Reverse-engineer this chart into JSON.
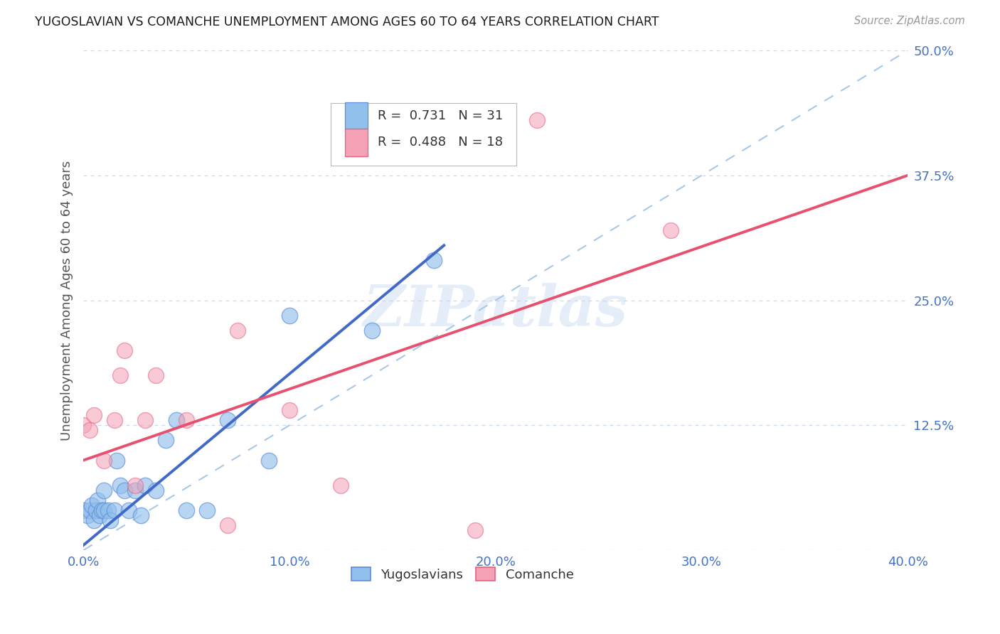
{
  "title": "YUGOSLAVIAN VS COMANCHE UNEMPLOYMENT AMONG AGES 60 TO 64 YEARS CORRELATION CHART",
  "source": "Source: ZipAtlas.com",
  "ylabel": "Unemployment Among Ages 60 to 64 years",
  "xlim": [
    0.0,
    0.4
  ],
  "ylim": [
    0.0,
    0.5
  ],
  "xticks": [
    0.0,
    0.1,
    0.2,
    0.3,
    0.4
  ],
  "yticks": [
    0.0,
    0.125,
    0.25,
    0.375,
    0.5
  ],
  "xticklabels": [
    "0.0%",
    "10.0%",
    "20.0%",
    "30.0%",
    "40.0%"
  ],
  "yticklabels": [
    "",
    "12.5%",
    "25.0%",
    "37.5%",
    "50.0%"
  ],
  "blue_R": 0.731,
  "blue_N": 31,
  "pink_R": 0.488,
  "pink_N": 18,
  "blue_color": "#92C0EC",
  "pink_color": "#F4A0B5",
  "blue_edge_color": "#5B8DD9",
  "pink_edge_color": "#E86080",
  "blue_line_color": "#4169C8",
  "pink_line_color": "#E85070",
  "diagonal_color": "#A8C8E8",
  "watermark": "ZIPatlas",
  "blue_line_x0": 0.0,
  "blue_line_y0": 0.005,
  "blue_line_x1": 0.175,
  "blue_line_y1": 0.305,
  "pink_line_x0": 0.0,
  "pink_line_y0": 0.09,
  "pink_line_x1": 0.4,
  "pink_line_y1": 0.375,
  "blue_scatter_x": [
    0.0,
    0.002,
    0.003,
    0.004,
    0.005,
    0.006,
    0.007,
    0.008,
    0.009,
    0.01,
    0.01,
    0.012,
    0.013,
    0.015,
    0.016,
    0.018,
    0.02,
    0.022,
    0.025,
    0.028,
    0.03,
    0.035,
    0.04,
    0.045,
    0.05,
    0.06,
    0.07,
    0.09,
    0.1,
    0.14,
    0.17
  ],
  "blue_scatter_y": [
    0.04,
    0.035,
    0.04,
    0.045,
    0.03,
    0.04,
    0.05,
    0.035,
    0.04,
    0.04,
    0.06,
    0.04,
    0.03,
    0.04,
    0.09,
    0.065,
    0.06,
    0.04,
    0.06,
    0.035,
    0.065,
    0.06,
    0.11,
    0.13,
    0.04,
    0.04,
    0.13,
    0.09,
    0.235,
    0.22,
    0.29
  ],
  "pink_scatter_x": [
    0.0,
    0.003,
    0.005,
    0.01,
    0.015,
    0.018,
    0.02,
    0.025,
    0.03,
    0.035,
    0.05,
    0.07,
    0.075,
    0.1,
    0.125,
    0.19,
    0.22,
    0.285
  ],
  "pink_scatter_y": [
    0.125,
    0.12,
    0.135,
    0.09,
    0.13,
    0.175,
    0.2,
    0.065,
    0.13,
    0.175,
    0.13,
    0.025,
    0.22,
    0.14,
    0.065,
    0.02,
    0.43,
    0.32
  ]
}
